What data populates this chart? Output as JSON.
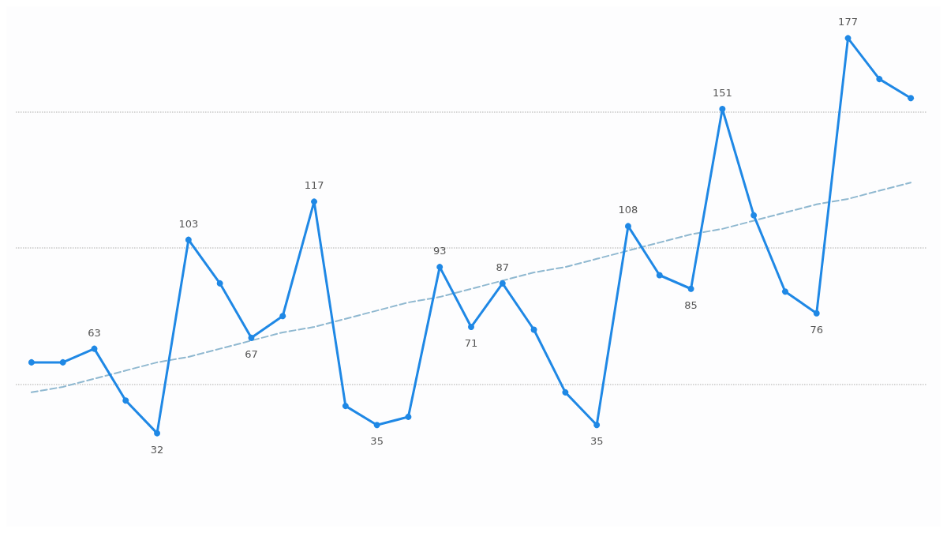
{
  "chart_data": {
    "type": "line",
    "categories": [
      null,
      null,
      null,
      null,
      null,
      null,
      null,
      null,
      null,
      null,
      null,
      null,
      null,
      null,
      null,
      null,
      null,
      null,
      null,
      null,
      null,
      null,
      null,
      null,
      null,
      null,
      null,
      null,
      null
    ],
    "series": [
      {
        "color": "#1f88e5",
        "marker": "circle",
        "line_style": "solid",
        "values": [
          58,
          58,
          63,
          44,
          32,
          103,
          87,
          67,
          75,
          117,
          42,
          35,
          38,
          93,
          71,
          87,
          70,
          47,
          35,
          108,
          90,
          85,
          151,
          112,
          84,
          76,
          177,
          162,
          155
        ],
        "value_labels": [
          null,
          null,
          "63",
          null,
          "32",
          "103",
          null,
          "67",
          null,
          "117",
          null,
          "35",
          null,
          "93",
          "71",
          "87",
          null,
          null,
          "35",
          "108",
          null,
          "85",
          "151",
          null,
          null,
          "76",
          "177",
          null,
          null
        ]
      },
      {
        "type": "line",
        "color": "#8fb8d0",
        "marker": "none",
        "line_style": "dashed",
        "values": [
          47,
          49,
          52,
          55,
          58,
          60,
          63,
          66,
          69,
          71,
          74,
          77,
          80,
          82,
          85,
          88,
          91,
          93,
          96,
          99,
          102,
          105,
          107,
          110,
          113,
          116,
          118,
          121,
          124
        ]
      }
    ],
    "yticks": [
      {
        "value": 50,
        "label": null
      },
      {
        "value": 100,
        "label": null
      },
      {
        "value": 150,
        "label": null
      }
    ],
    "grid": "y"
  }
}
